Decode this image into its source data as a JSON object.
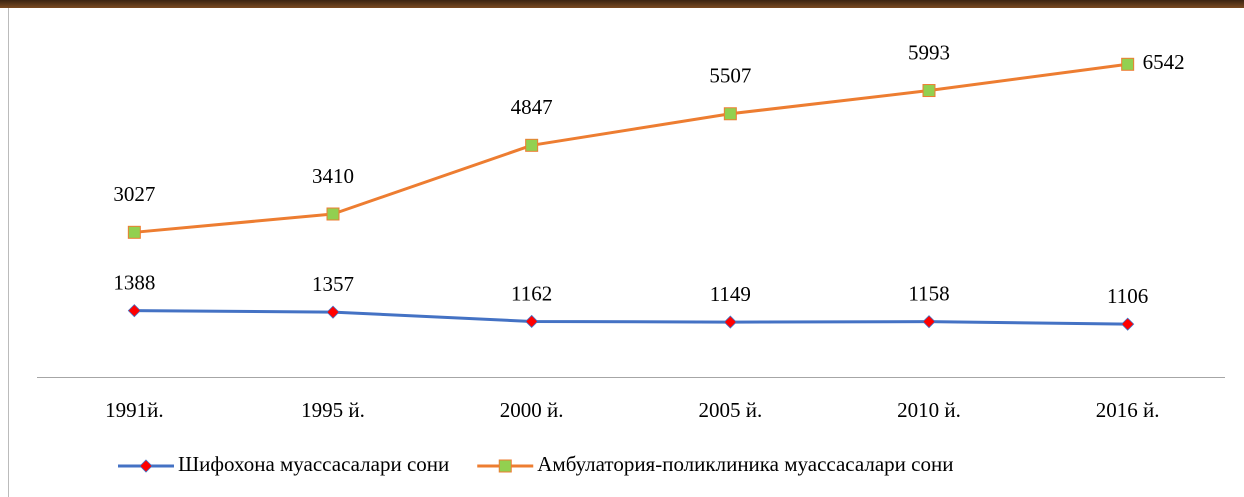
{
  "chart_data": {
    "type": "line",
    "categories": [
      "1991й.",
      "1995 й.",
      "2000 й.",
      "2005 й.",
      "2010 й.",
      "2016 й."
    ],
    "series": [
      {
        "name": "Шифохона муассасалари сони",
        "color": "#4472c4",
        "marker_color": "#ff0000",
        "values": [
          1388,
          1357,
          1162,
          1149,
          1158,
          1106
        ]
      },
      {
        "name": "Амбулатория-поликлиника муассасалари сони",
        "color": "#ed7d31",
        "marker_color": "#92d050",
        "values": [
          3027,
          3410,
          4847,
          5507,
          5993,
          6542
        ]
      }
    ],
    "ylim": [
      0,
      7000
    ],
    "grid": false
  }
}
